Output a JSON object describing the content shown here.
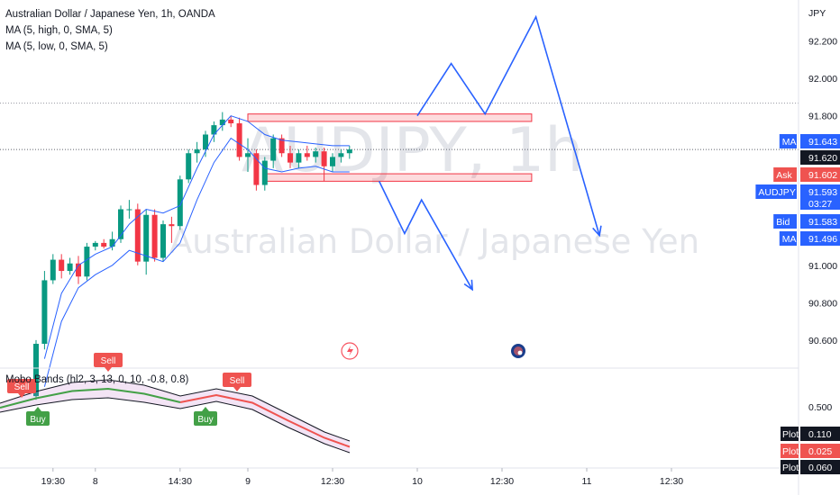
{
  "header": {
    "symbol_line": "Australian Dollar / Japanese Yen, 1h, OANDA",
    "ma_high": "MA (5, high, 0, SMA, 5)",
    "ma_low": "MA (5, low, 0, SMA, 5)"
  },
  "watermark": {
    "ticker": "AUDJPY, 1h",
    "name": "Australian Dollar / Japanese Yen"
  },
  "indicator": {
    "label": "Mobo Bands (hl2, 3, 13, 0, 10, -0.8, 0.8)",
    "yticks": [
      "0.500"
    ],
    "signals": [
      {
        "type": "Sell",
        "x": 24,
        "y": 437,
        "dir": "down",
        "color": "#ef5350"
      },
      {
        "type": "Buy",
        "x": 42,
        "y": 465,
        "dir": "up",
        "color": "#43a047"
      },
      {
        "type": "Sell",
        "x": 120,
        "y": 408,
        "dir": "down",
        "color": "#ef5350"
      },
      {
        "type": "Buy",
        "x": 228,
        "y": 465,
        "dir": "up",
        "color": "#43a047"
      },
      {
        "type": "Sell",
        "x": 263,
        "y": 430,
        "dir": "down",
        "color": "#ef5350"
      }
    ],
    "plots": [
      {
        "label": "Plot",
        "value": "0.110",
        "color": "#131722"
      },
      {
        "label": "Plot",
        "value": "0.025",
        "color": "#ef5350"
      },
      {
        "label": "Plot",
        "value": "0.060",
        "color": "#131722"
      }
    ]
  },
  "axis": {
    "currency": "JPY",
    "price_tags": [
      {
        "label": "MA",
        "value": "91.643",
        "color": "#2962ff"
      },
      {
        "label": "",
        "value": "91.620",
        "color": "#131722"
      },
      {
        "label": "Ask",
        "value": "91.602",
        "color": "#ef5350"
      },
      {
        "label": "AUDJPY",
        "value": "91.593",
        "color": "#2962ff",
        "sub": "03:27"
      },
      {
        "label": "Bid",
        "value": "91.583",
        "color": "#2962ff"
      },
      {
        "label": "MA",
        "value": "91.496",
        "color": "#2962ff"
      }
    ]
  },
  "chart_data": {
    "type": "candlestick",
    "title": "Australian Dollar / Japanese Yen, 1h, OANDA",
    "ylim": [
      90.45,
      92.42
    ],
    "yticks": [
      92.2,
      92.0,
      91.8,
      91.6,
      91.4,
      91.2,
      91.0,
      90.8,
      90.6
    ],
    "ytick_labels": [
      "92.200",
      "92.000",
      "91.800",
      "",
      "",
      "",
      "91.000",
      "90.800",
      "90.600"
    ],
    "xticks": [
      {
        "x": 2.0,
        "label": "19:30"
      },
      {
        "x": 7.0,
        "label": "8"
      },
      {
        "x": 17.0,
        "label": "14:30"
      },
      {
        "x": 25.0,
        "label": "9"
      },
      {
        "x": 35.0,
        "label": "12:30"
      },
      {
        "x": 45.0,
        "label": "10"
      },
      {
        "x": 55.0,
        "label": "12:30"
      },
      {
        "x": 65.0,
        "label": "11"
      },
      {
        "x": 75.0,
        "label": "12:30"
      }
    ],
    "candles": [
      [
        0,
        90.3,
        90.6,
        90.28,
        90.58
      ],
      [
        1,
        90.58,
        90.97,
        90.55,
        90.92
      ],
      [
        2,
        90.92,
        91.06,
        90.9,
        91.03
      ],
      [
        3,
        91.03,
        91.06,
        90.93,
        90.97
      ],
      [
        4,
        90.97,
        91.04,
        90.95,
        91.01
      ],
      [
        5,
        91.01,
        91.05,
        90.9,
        90.94
      ],
      [
        6,
        90.94,
        91.12,
        90.92,
        91.1
      ],
      [
        7,
        91.1,
        91.13,
        91.08,
        91.12
      ],
      [
        8,
        91.12,
        91.14,
        91.09,
        91.1
      ],
      [
        9,
        91.1,
        91.18,
        91.08,
        91.14
      ],
      [
        10,
        91.14,
        91.32,
        91.12,
        91.3
      ],
      [
        11,
        91.3,
        91.35,
        91.25,
        91.3
      ],
      [
        12,
        91.3,
        91.33,
        91.0,
        91.02
      ],
      [
        13,
        91.02,
        91.3,
        90.95,
        91.27
      ],
      [
        14,
        91.27,
        91.3,
        91.02,
        91.04
      ],
      [
        15,
        91.04,
        91.24,
        91.02,
        91.22
      ],
      [
        16,
        91.22,
        91.26,
        91.12,
        91.21
      ],
      [
        17,
        91.21,
        91.48,
        91.19,
        91.46
      ],
      [
        18,
        91.46,
        91.62,
        91.44,
        91.6
      ],
      [
        19,
        91.6,
        91.66,
        91.55,
        91.62
      ],
      [
        20,
        91.62,
        91.72,
        91.58,
        91.7
      ],
      [
        21,
        91.7,
        91.77,
        91.66,
        91.75
      ],
      [
        22,
        91.75,
        91.82,
        91.72,
        91.78
      ],
      [
        23,
        91.78,
        91.8,
        91.74,
        91.76
      ],
      [
        24,
        91.76,
        91.79,
        91.56,
        91.58
      ],
      [
        25,
        91.58,
        91.68,
        91.5,
        91.6
      ],
      [
        26,
        91.6,
        91.62,
        91.4,
        91.43
      ],
      [
        27,
        91.43,
        91.58,
        91.4,
        91.56
      ],
      [
        28,
        91.56,
        91.7,
        91.52,
        91.68
      ],
      [
        29,
        91.68,
        91.7,
        91.58,
        91.6
      ],
      [
        30,
        91.6,
        91.64,
        91.52,
        91.55
      ],
      [
        31,
        91.55,
        91.62,
        91.52,
        91.6
      ],
      [
        32,
        91.6,
        91.64,
        91.56,
        91.58
      ],
      [
        33,
        91.58,
        91.63,
        91.55,
        91.61
      ],
      [
        34,
        91.61,
        91.63,
        91.45,
        91.53
      ],
      [
        35,
        91.53,
        91.6,
        91.5,
        91.58
      ],
      [
        36,
        91.58,
        91.62,
        91.55,
        91.6
      ],
      [
        37,
        91.6,
        91.64,
        91.57,
        91.62
      ]
    ],
    "ma_high": [
      [
        1,
        90.5
      ],
      [
        3,
        90.85
      ],
      [
        5,
        91.0
      ],
      [
        7,
        91.06
      ],
      [
        9,
        91.1
      ],
      [
        11,
        91.22
      ],
      [
        13,
        91.3
      ],
      [
        15,
        91.28
      ],
      [
        17,
        91.32
      ],
      [
        19,
        91.52
      ],
      [
        21,
        91.7
      ],
      [
        23,
        91.8
      ],
      [
        25,
        91.77
      ],
      [
        27,
        91.7
      ],
      [
        29,
        91.67
      ],
      [
        31,
        91.66
      ],
      [
        33,
        91.65
      ],
      [
        35,
        91.64
      ],
      [
        37,
        91.64
      ]
    ],
    "ma_low": [
      [
        1,
        90.35
      ],
      [
        3,
        90.7
      ],
      [
        5,
        90.88
      ],
      [
        7,
        90.95
      ],
      [
        9,
        91.0
      ],
      [
        11,
        91.08
      ],
      [
        13,
        91.05
      ],
      [
        15,
        91.02
      ],
      [
        17,
        91.12
      ],
      [
        19,
        91.35
      ],
      [
        21,
        91.55
      ],
      [
        23,
        91.68
      ],
      [
        25,
        91.62
      ],
      [
        27,
        91.52
      ],
      [
        29,
        91.5
      ],
      [
        31,
        91.52
      ],
      [
        33,
        91.53
      ],
      [
        35,
        91.5
      ],
      [
        37,
        91.5
      ]
    ],
    "zones": [
      {
        "x0": 25.0,
        "x1": 58.5,
        "y0": 91.77,
        "y1": 91.81
      },
      {
        "x0": 27.0,
        "x1": 58.5,
        "y0": 91.45,
        "y1": 91.49
      }
    ],
    "projections": [
      [
        [
          45.0,
          91.8
        ],
        [
          49.0,
          92.08
        ],
        [
          53.0,
          91.81
        ],
        [
          59.0,
          92.33
        ],
        [
          66.5,
          91.16
        ]
      ],
      [
        [
          40.5,
          91.45
        ],
        [
          43.5,
          91.17
        ],
        [
          45.5,
          91.35
        ],
        [
          51.5,
          90.87
        ]
      ]
    ]
  }
}
